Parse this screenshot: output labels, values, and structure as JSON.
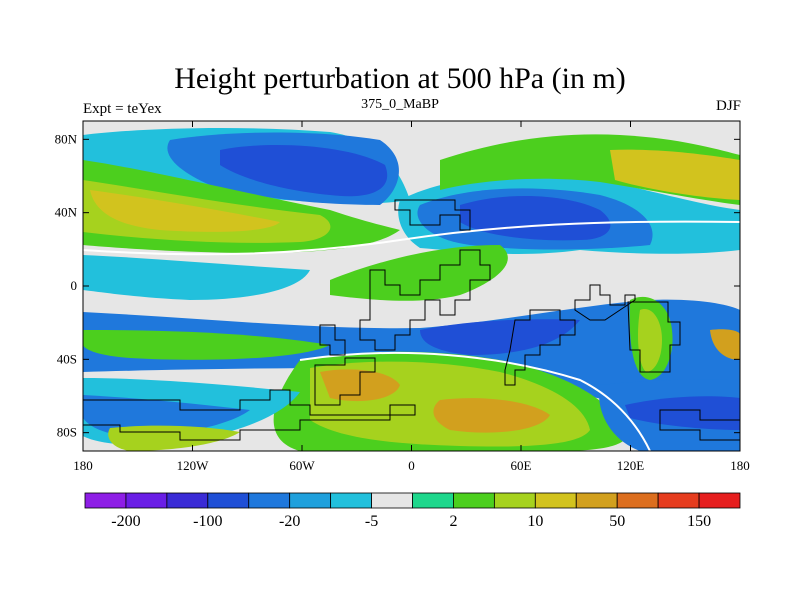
{
  "chart_data": {
    "type": "heatmap",
    "title": "Height perturbation at 500 hPa (in m)",
    "left_string": "Expt = teYex",
    "center_string": "375_0_MaBP",
    "right_string": "DJF",
    "x_range": [
      -180,
      180
    ],
    "y_range": [
      -90,
      90
    ],
    "x_ticks": [
      {
        "value": -180,
        "label": "180"
      },
      {
        "value": -120,
        "label": "120W"
      },
      {
        "value": -60,
        "label": "60W"
      },
      {
        "value": 0,
        "label": "0"
      },
      {
        "value": 60,
        "label": "60E"
      },
      {
        "value": 120,
        "label": "120E"
      },
      {
        "value": 180,
        "label": "180"
      }
    ],
    "y_ticks": [
      {
        "value": 80,
        "label": "80N"
      },
      {
        "value": 40,
        "label": "40N"
      },
      {
        "value": 0,
        "label": "0"
      },
      {
        "value": -40,
        "label": "40S"
      },
      {
        "value": -80,
        "label": "80S"
      }
    ],
    "colorbar": {
      "colors": [
        "#8e1ee6",
        "#6a1ee6",
        "#3a2bd6",
        "#1f4fd6",
        "#1f78dc",
        "#1fa0dc",
        "#22c0dc",
        "#e6e6e6",
        "#1ed78c",
        "#4ccf1e",
        "#a6d21e",
        "#d2c31e",
        "#d2a01e",
        "#dc6e1e",
        "#e63c1e",
        "#e61e1e"
      ],
      "labels": [
        {
          "after_box": 1,
          "text": "-200"
        },
        {
          "after_box": 3,
          "text": "-100"
        },
        {
          "after_box": 5,
          "text": "-20"
        },
        {
          "after_box": 7,
          "text": "-5"
        },
        {
          "after_box": 9,
          "text": "2"
        },
        {
          "after_box": 11,
          "text": "10"
        },
        {
          "after_box": 13,
          "text": "50"
        },
        {
          "after_box": 15,
          "text": "150"
        }
      ]
    }
  }
}
